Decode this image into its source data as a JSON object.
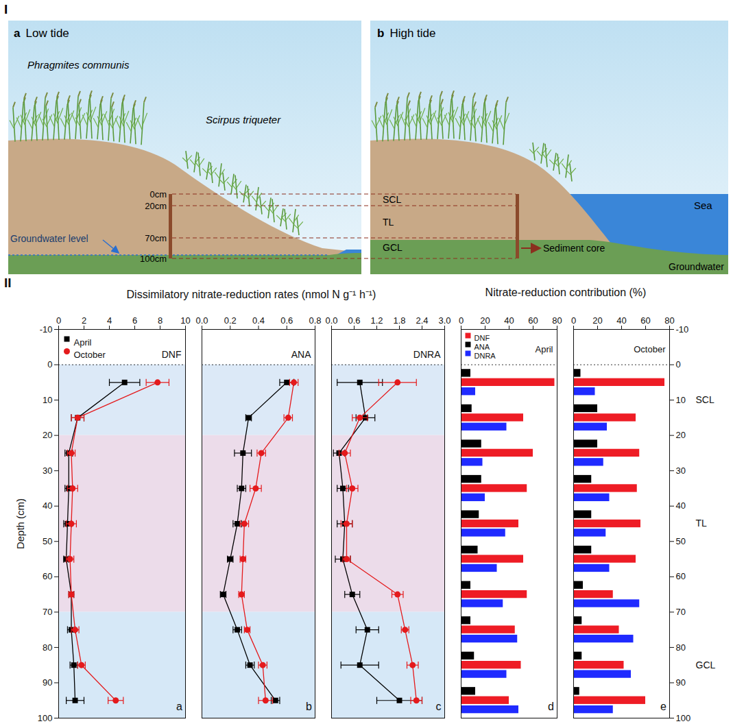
{
  "diagram": {
    "section": "I",
    "panels": [
      {
        "letter": "a",
        "title": "Low tide"
      },
      {
        "letter": "b",
        "title": "High tide"
      }
    ],
    "plants": [
      "Phragmites communis",
      "Scirpus triqueter"
    ],
    "depth_marks": [
      "0cm",
      "20cm",
      "70cm",
      "100cm"
    ],
    "groundwater_level": "Groundwater level",
    "layers": [
      "SCL",
      "TL",
      "GCL"
    ],
    "sea": "Sea",
    "sediment_core": "Sediment core",
    "groundwater": "Groundwater"
  },
  "figure_II": {
    "section": "II",
    "titles": [
      "Dissimilatory nitrate-reduction rates (nmol N g⁻¹ h⁻¹)",
      "Nitrate-reduction contribution (%)"
    ],
    "layers": [
      {
        "name": "SCL",
        "from": 0,
        "to": 20,
        "color": "#dce9f7"
      },
      {
        "name": "TL",
        "from": 20,
        "to": 70,
        "color": "#ecdcea"
      },
      {
        "name": "GCL",
        "from": 70,
        "to": 100,
        "color": "#d6e8f7"
      }
    ]
  },
  "chart_data": [
    {
      "type": "line",
      "letter": "a",
      "title": "DNF",
      "y_label": "Depth (cm)",
      "legend": "top-left",
      "y": [
        5,
        15,
        25,
        35,
        45,
        55,
        65,
        75,
        85,
        95
      ],
      "series": [
        {
          "name": "April",
          "color": "#000000",
          "marker": "square",
          "values": [
            5.2,
            1.5,
            0.8,
            0.8,
            0.7,
            0.6,
            1.0,
            1.0,
            1.2,
            1.3
          ],
          "errors": [
            1.2,
            0.5,
            0.3,
            0.3,
            0.3,
            0.2,
            0.2,
            0.3,
            0.3,
            0.7
          ]
        },
        {
          "name": "October",
          "color": "#e41a1c",
          "marker": "circle",
          "values": [
            7.8,
            1.5,
            1.0,
            1.1,
            1.0,
            0.9,
            1.0,
            1.3,
            1.8,
            4.5
          ],
          "errors": [
            0.9,
            0.5,
            0.3,
            0.4,
            0.4,
            0.3,
            0.2,
            0.3,
            0.3,
            0.6
          ]
        }
      ],
      "xlim": [
        0,
        10
      ],
      "xticks": [
        0,
        2,
        4,
        6,
        8,
        10
      ],
      "ylim": [
        -10,
        100
      ],
      "yticks": [
        -10,
        0,
        10,
        20,
        30,
        40,
        50,
        60,
        70,
        80,
        90,
        100
      ]
    },
    {
      "type": "line",
      "letter": "b",
      "title": "ANA",
      "tick_labels": "x",
      "y": [
        5,
        15,
        25,
        35,
        45,
        55,
        65,
        75,
        85,
        95
      ],
      "series": [
        {
          "name": "April",
          "color": "#000000",
          "marker": "square",
          "values": [
            0.6,
            0.33,
            0.29,
            0.28,
            0.25,
            0.2,
            0.15,
            0.25,
            0.34,
            0.52
          ],
          "errors": [
            0.05,
            0.02,
            0.06,
            0.03,
            0.03,
            0.02,
            0.02,
            0.03,
            0.03,
            0.03
          ]
        },
        {
          "name": "October",
          "color": "#e41a1c",
          "marker": "circle",
          "values": [
            0.65,
            0.61,
            0.42,
            0.38,
            0.3,
            0.29,
            0.28,
            0.32,
            0.43,
            0.45
          ],
          "errors": [
            0.03,
            0.03,
            0.03,
            0.04,
            0.03,
            0.02,
            0.02,
            0.02,
            0.03,
            0.05
          ]
        }
      ],
      "xlim": [
        0,
        0.8
      ],
      "xticks": [
        {
          "value": 0,
          "label": "0.0"
        },
        0.2,
        0.4,
        0.6,
        0.8
      ],
      "ylim": [
        -10,
        100
      ],
      "yticks": [
        -10,
        0,
        10,
        20,
        30,
        40,
        50,
        60,
        70,
        80,
        90,
        100
      ]
    },
    {
      "type": "line",
      "letter": "c",
      "title": "DNRA",
      "tick_labels": "x",
      "y": [
        5,
        15,
        25,
        35,
        45,
        55,
        65,
        75,
        85,
        95
      ],
      "series": [
        {
          "name": "April",
          "color": "#000000",
          "marker": "square",
          "values": [
            0.75,
            0.9,
            0.2,
            0.3,
            0.35,
            0.3,
            0.55,
            0.95,
            0.75,
            1.8
          ],
          "errors": [
            0.6,
            0.25,
            0.15,
            0.15,
            0.2,
            0.2,
            0.2,
            0.3,
            0.5,
            0.6
          ]
        },
        {
          "name": "October",
          "color": "#e41a1c",
          "marker": "circle",
          "values": [
            1.75,
            0.75,
            0.35,
            0.55,
            0.4,
            0.4,
            1.75,
            1.95,
            2.15,
            2.25
          ],
          "errors": [
            0.5,
            0.2,
            0.15,
            0.15,
            0.15,
            0.1,
            0.15,
            0.1,
            0.15,
            0.15
          ]
        }
      ],
      "xlim": [
        0,
        3
      ],
      "xticks": [
        {
          "value": 0,
          "label": "0.0"
        },
        0.6,
        1.2,
        1.8,
        2.4,
        {
          "value": 3,
          "label": "3.0"
        }
      ],
      "ylim": [
        -10,
        100
      ],
      "yticks": [
        -10,
        0,
        10,
        20,
        30,
        40,
        50,
        60,
        70,
        80,
        90,
        100
      ]
    },
    {
      "type": "bar",
      "letter": "d",
      "title": "April",
      "orientation": "horizontal",
      "legend": "top-left",
      "tick_labels": "x",
      "y": [
        5,
        15,
        25,
        35,
        45,
        55,
        65,
        75,
        85,
        95
      ],
      "series": [
        {
          "name": "DNF",
          "color": "#ee1c25",
          "values": [
            78,
            52,
            60,
            55,
            48,
            52,
            55,
            45,
            50,
            40
          ]
        },
        {
          "name": "ANA",
          "color": "#000000",
          "values": [
            8,
            9,
            17,
            17,
            15,
            14,
            8,
            8,
            11,
            12
          ]
        },
        {
          "name": "DNRA",
          "color": "#1f2aff",
          "values": [
            12,
            38,
            18,
            20,
            37,
            30,
            35,
            47,
            38,
            48
          ]
        }
      ],
      "xlim": [
        0,
        80
      ],
      "xticks": [
        0,
        20,
        40,
        60,
        80
      ],
      "ylim": [
        -10,
        100
      ],
      "yticks": [
        -10,
        0,
        10,
        20,
        30,
        40,
        50,
        60,
        70,
        80,
        90,
        100
      ]
    },
    {
      "type": "bar",
      "letter": "e",
      "title": "October",
      "orientation": "horizontal",
      "y": [
        5,
        15,
        25,
        35,
        45,
        55,
        65,
        75,
        85,
        95
      ],
      "series": [
        {
          "name": "DNF",
          "color": "#ee1c25",
          "values": [
            76,
            52,
            55,
            53,
            56,
            52,
            33,
            38,
            42,
            60
          ]
        },
        {
          "name": "ANA",
          "color": "#000000",
          "values": [
            6,
            20,
            20,
            15,
            15,
            15,
            8,
            7,
            7,
            5
          ]
        },
        {
          "name": "DNRA",
          "color": "#1f2aff",
          "values": [
            18,
            28,
            25,
            30,
            27,
            30,
            55,
            50,
            48,
            33
          ]
        }
      ],
      "xlim": [
        0,
        80
      ],
      "xticks": [
        0,
        20,
        40,
        60,
        80
      ],
      "ylim": [
        -10,
        100
      ],
      "yticks": [
        -10,
        0,
        10,
        20,
        30,
        40,
        50,
        60,
        70,
        80,
        90,
        100
      ]
    }
  ]
}
